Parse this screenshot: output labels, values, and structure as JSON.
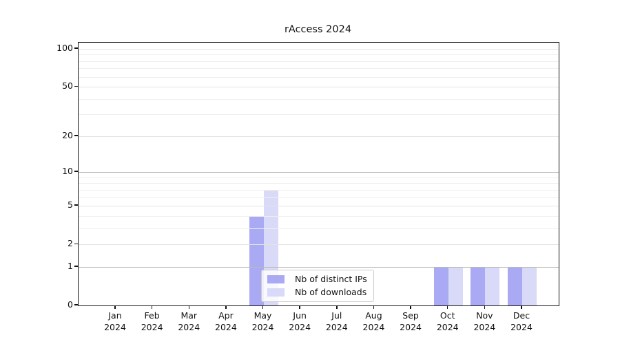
{
  "figure": {
    "background": "#ffffff"
  },
  "chart_data": {
    "type": "bar",
    "title": "rAccess 2024",
    "categories": [
      "Jan",
      "Feb",
      "Mar",
      "Apr",
      "May",
      "Jun",
      "Jul",
      "Aug",
      "Sep",
      "Oct",
      "Nov",
      "Dec"
    ],
    "category_year": "2024",
    "series": [
      {
        "name": "Nb of distinct IPs",
        "color": "#a9a9f4",
        "values": [
          0,
          0,
          0,
          0,
          4,
          0,
          0,
          0,
          0,
          1,
          1,
          1
        ]
      },
      {
        "name": "Nb of downloads",
        "color": "#d9d9f8",
        "values": [
          0,
          0,
          0,
          0,
          7,
          0,
          0,
          0,
          0,
          1,
          1,
          1
        ]
      }
    ],
    "y_axis": {
      "scale": "log1p",
      "max": 100,
      "tick_values": [
        0,
        1,
        2,
        5,
        10,
        20,
        50,
        100
      ],
      "tick_labels": [
        "0",
        "1",
        "2",
        "5",
        "10",
        "20",
        "50",
        "100"
      ],
      "minor_gridlines": [
        3,
        4,
        6,
        7,
        8,
        9,
        30,
        40,
        60,
        70,
        80,
        90
      ],
      "decade_gridlines": [
        1,
        10
      ]
    },
    "grid": true,
    "legend_position": "lower-center"
  }
}
